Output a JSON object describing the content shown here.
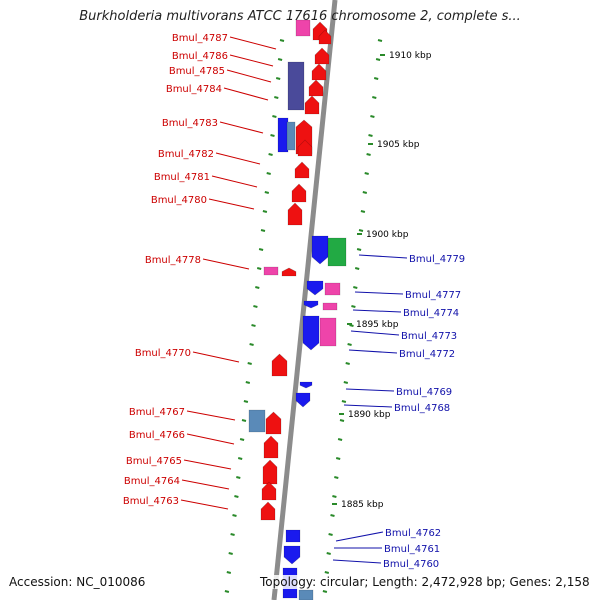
{
  "title": "Burkholderia multivorans ATCC 17616 chromosome 2, complete s...",
  "accession": "Accession: NC_010086",
  "topology": "Topology: circular; Length: 2,472,928 bp; Genes: 2,158",
  "colors": {
    "backbone": "#8c8c8c",
    "tick": "#2a8a2a",
    "red": "#ee1111",
    "blue": "#1a1aee",
    "pink": "#ee44aa",
    "navy": "#4a4a9a",
    "green": "#22aa44",
    "steel": "#5a8ab8",
    "label_left": "#cc0000",
    "label_right": "#1111aa"
  },
  "scale_labels": [
    "1910 kbp",
    "1905 kbp",
    "1900 kbp",
    "1895 kbp",
    "1890 kbp",
    "1885 kbp"
  ],
  "labels_left": [
    "Bmul_4787",
    "Bmul_4786",
    "Bmul_4785",
    "Bmul_4784",
    "Bmul_4783",
    "Bmul_4782",
    "Bmul_4781",
    "Bmul_4780",
    "Bmul_4778",
    "Bmul_4770",
    "Bmul_4767",
    "Bmul_4766",
    "Bmul_4765",
    "Bmul_4764",
    "Bmul_4763"
  ],
  "labels_right": [
    "Bmul_4779",
    "Bmul_4777",
    "Bmul_4774",
    "Bmul_4773",
    "Bmul_4772",
    "Bmul_4769",
    "Bmul_4768",
    "Bmul_4762",
    "Bmul_4761",
    "Bmul_4760"
  ]
}
